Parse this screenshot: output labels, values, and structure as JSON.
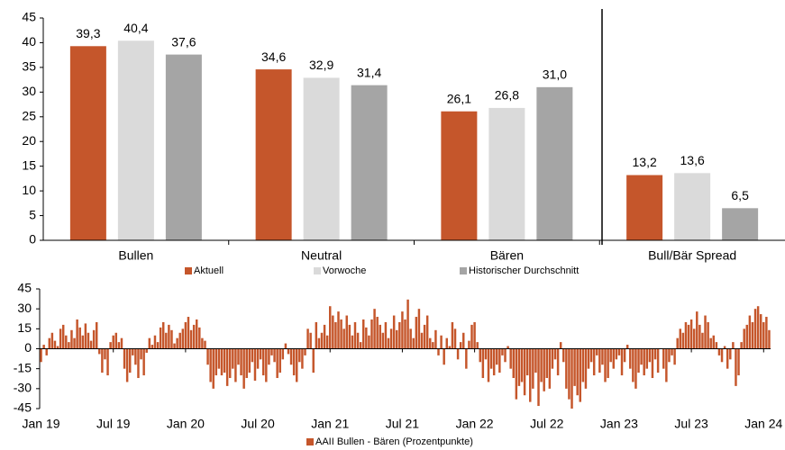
{
  "chart_data": [
    {
      "type": "bar",
      "categories": [
        "Bullen",
        "Neutral",
        "Bären",
        "Bull/Bär Spread"
      ],
      "series": [
        {
          "name": "Aktuell",
          "color": "#c5562b",
          "values": [
            39.3,
            34.6,
            26.1,
            13.2
          ],
          "value_labels": [
            "39,3",
            "34,6",
            "26,1",
            "13,2"
          ]
        },
        {
          "name": "Vorwoche",
          "color": "#dadada",
          "values": [
            40.4,
            32.9,
            26.8,
            13.6
          ],
          "value_labels": [
            "40,4",
            "32,9",
            "26,8",
            "13,6"
          ]
        },
        {
          "name": "Historischer Durchschnitt",
          "color": "#a5a5a5",
          "values": [
            37.6,
            31.4,
            31.0,
            6.5
          ],
          "value_labels": [
            "37,6",
            "31,4",
            "31,0",
            "6,5"
          ]
        }
      ],
      "ylim": [
        0,
        45
      ],
      "yticks": [
        0,
        5,
        10,
        15,
        20,
        25,
        30,
        35,
        40,
        45
      ],
      "legend": "bottom"
    },
    {
      "type": "bar",
      "categories": [
        "Jan 19",
        null,
        null,
        null,
        null,
        null,
        null,
        null,
        null,
        null,
        null,
        null,
        null,
        null,
        null,
        null,
        null,
        null,
        null,
        null,
        null,
        null,
        null,
        null,
        null,
        null,
        "Jul 19",
        null,
        null,
        null,
        null,
        null,
        null,
        null,
        null,
        null,
        null,
        null,
        null,
        null,
        null,
        null,
        null,
        null,
        null,
        null,
        null,
        null,
        null,
        null,
        null,
        null,
        "Jan 20",
        null,
        null,
        null,
        null,
        null,
        null,
        null,
        null,
        null,
        null,
        null,
        null,
        null,
        null,
        null,
        null,
        null,
        null,
        null,
        null,
        null,
        null,
        null,
        null,
        null,
        "Jul 20",
        null,
        null,
        null,
        null,
        null,
        null,
        null,
        null,
        null,
        null,
        null,
        null,
        null,
        null,
        null,
        null,
        null,
        null,
        null,
        null,
        null,
        null,
        null,
        null,
        null,
        "Jan 21",
        null,
        null,
        null,
        null,
        null,
        null,
        null,
        null,
        null,
        null,
        null,
        null,
        null,
        null,
        null,
        null,
        null,
        null,
        null,
        null,
        null,
        null,
        null,
        null,
        null,
        "Jul 21",
        null,
        null,
        null,
        null,
        null,
        null,
        null,
        null,
        null,
        null,
        null,
        null,
        null,
        null,
        null,
        null,
        null,
        null,
        null,
        null,
        null,
        null,
        null,
        null,
        null,
        "Jan 22",
        null,
        null,
        null,
        null,
        null,
        null,
        null,
        null,
        null,
        null,
        null,
        null,
        null,
        null,
        null,
        null,
        null,
        null,
        null,
        null,
        null,
        null,
        null,
        null,
        null,
        "Jul 22",
        null,
        null,
        null,
        null,
        null,
        null,
        null,
        null,
        null,
        null,
        null,
        null,
        null,
        null,
        null,
        null,
        null,
        null,
        null,
        null,
        null,
        null,
        null,
        null,
        null,
        "Jan 23",
        null,
        null,
        null,
        null,
        null,
        null,
        null,
        null,
        null,
        null,
        null,
        null,
        null,
        null,
        null,
        null,
        null,
        null,
        null,
        null,
        null,
        null,
        null,
        null,
        null,
        "Jul 23",
        null,
        null,
        null,
        null,
        null,
        null,
        null,
        null,
        null,
        null,
        null,
        null,
        null,
        null,
        null,
        null,
        null,
        null,
        null,
        null,
        null,
        null,
        null,
        null,
        null,
        "Jan 24",
        null,
        null
      ],
      "series": [
        {
          "name": "AAII Bullen - Bären (Prozentpunkte)",
          "color": "#c5562b",
          "values": [
            -10,
            3,
            -5,
            8,
            12,
            6,
            2,
            15,
            18,
            10,
            5,
            14,
            8,
            22,
            16,
            10,
            19,
            12,
            6,
            14,
            20,
            -4,
            -18,
            -8,
            -20,
            5,
            10,
            12,
            5,
            8,
            -15,
            -25,
            -18,
            -5,
            -12,
            -22,
            -8,
            -20,
            -3,
            8,
            3,
            10,
            5,
            16,
            20,
            12,
            18,
            14,
            4,
            8,
            12,
            15,
            20,
            24,
            14,
            18,
            22,
            16,
            8,
            6,
            -12,
            -25,
            -30,
            -20,
            -15,
            -20,
            -18,
            -28,
            -22,
            -15,
            -25,
            -12,
            -20,
            -30,
            -22,
            -18,
            -10,
            -24,
            -15,
            -8,
            -20,
            -25,
            -12,
            -5,
            -10,
            -22,
            -18,
            -8,
            4,
            -4,
            -12,
            -20,
            -25,
            -10,
            -15,
            -5,
            15,
            12,
            -18,
            20,
            8,
            12,
            18,
            10,
            32,
            25,
            20,
            28,
            22,
            15,
            25,
            18,
            10,
            20,
            12,
            5,
            22,
            16,
            10,
            22,
            30,
            24,
            18,
            12,
            20,
            8,
            15,
            25,
            14,
            20,
            28,
            22,
            37,
            15,
            8,
            24,
            30,
            12,
            18,
            25,
            8,
            5,
            14,
            -5,
            10,
            -12,
            8,
            2,
            20,
            15,
            -8,
            5,
            12,
            -15,
            6,
            18,
            20,
            5,
            -10,
            -22,
            -8,
            -25,
            -15,
            -20,
            -12,
            -18,
            -5,
            -10,
            2,
            -15,
            -22,
            -38,
            -28,
            -25,
            -35,
            -20,
            -40,
            -30,
            -18,
            -43,
            -25,
            -32,
            -22,
            -30,
            -15,
            -8,
            -20,
            5,
            -10,
            -30,
            -38,
            -45,
            -28,
            -35,
            -40,
            -25,
            -30,
            -15,
            -10,
            -20,
            -5,
            -18,
            -12,
            -25,
            -22,
            -10,
            -15,
            -8,
            -5,
            -20,
            -10,
            3,
            -15,
            -25,
            -30,
            -18,
            -12,
            -20,
            -15,
            -10,
            -22,
            -8,
            -18,
            0,
            -15,
            -25,
            -10,
            -5,
            -12,
            8,
            15,
            12,
            20,
            18,
            22,
            15,
            28,
            18,
            12,
            25,
            20,
            8,
            10,
            5,
            -5,
            -10,
            2,
            -15,
            -8,
            5,
            -28,
            -20,
            5,
            15,
            18,
            25,
            20,
            30,
            32,
            26,
            20,
            24,
            14
          ]
        }
      ],
      "ylim": [
        -45,
        45
      ],
      "yticks": [
        -45,
        -30,
        -15,
        0,
        15,
        30,
        45
      ],
      "legend": "bottom"
    }
  ]
}
